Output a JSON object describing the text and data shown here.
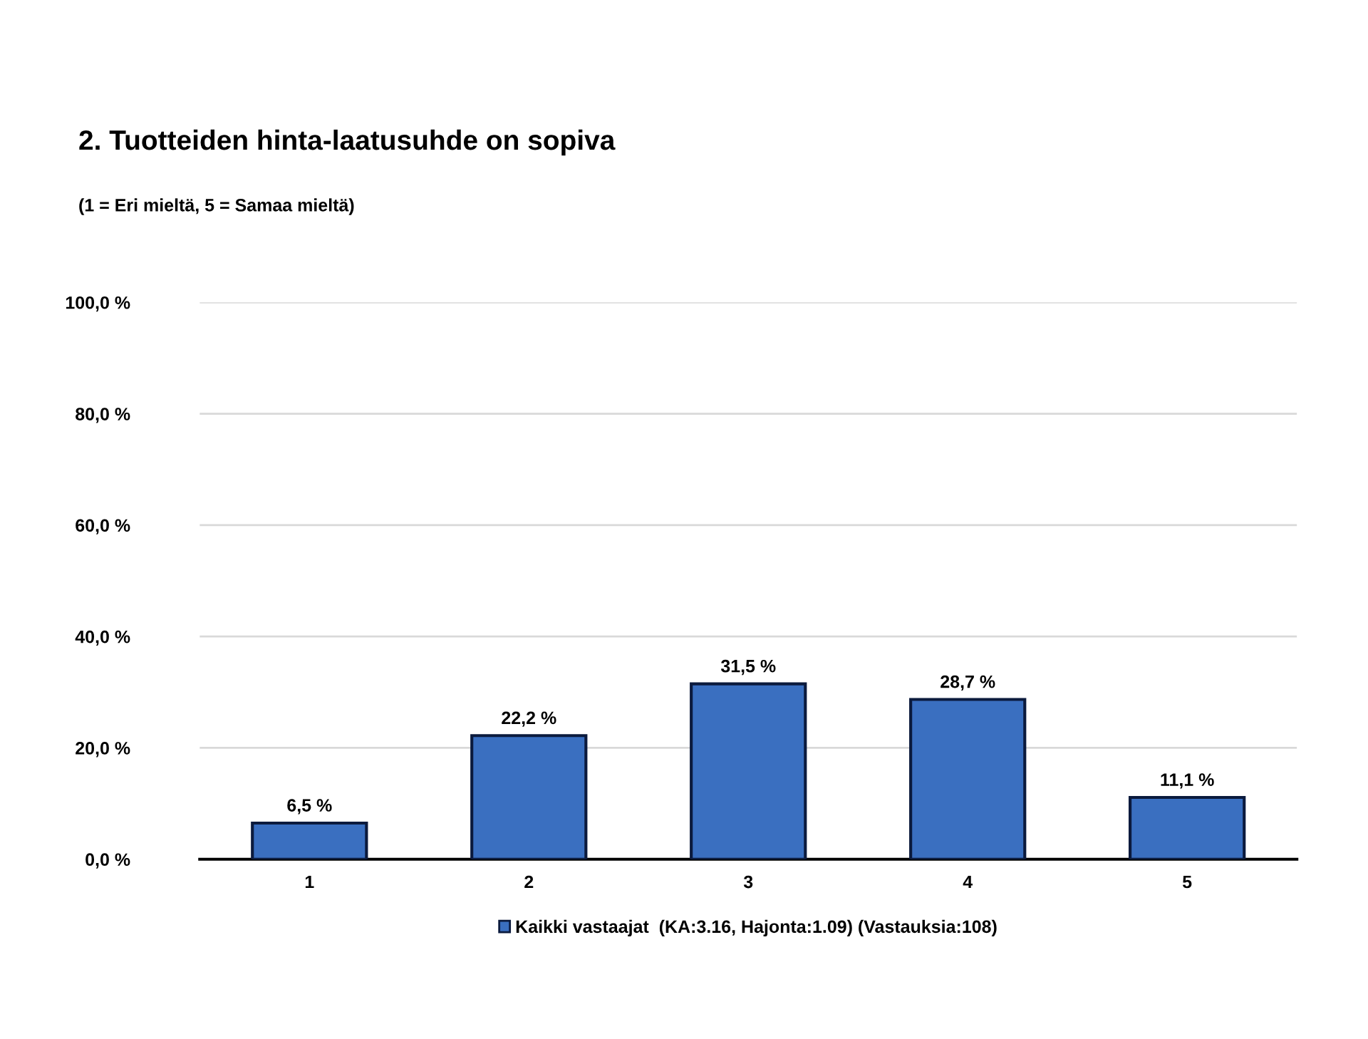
{
  "chart_data": {
    "type": "bar",
    "title": "2. Tuotteiden hinta-laatusuhde on sopiva",
    "subtitle": "(1 = Eri mieltä, 5 = Samaa mieltä)",
    "categories": [
      "1",
      "2",
      "3",
      "4",
      "5"
    ],
    "series": [
      {
        "name": "Kaikki vastaajat  (KA:3.16, Hajonta:1.09) (Vastauksia:108)",
        "color": "#3a6fc0",
        "values": [
          6.5,
          22.2,
          31.5,
          28.7,
          11.1
        ],
        "value_labels": [
          "6,5 %",
          "22,2 %",
          "31,5 %",
          "28,7 %",
          "11,1 %"
        ]
      }
    ],
    "ylim": [
      0,
      100
    ],
    "yticks": [
      {
        "value": 0,
        "label": "0,0 %"
      },
      {
        "value": 20,
        "label": "20,0 %"
      },
      {
        "value": 40,
        "label": "40,0 %"
      },
      {
        "value": 60,
        "label": "60,0 %"
      },
      {
        "value": 80,
        "label": "80,0 %"
      },
      {
        "value": 100,
        "label": "100,0 %"
      }
    ],
    "grid": "y",
    "legend": "bottom"
  }
}
